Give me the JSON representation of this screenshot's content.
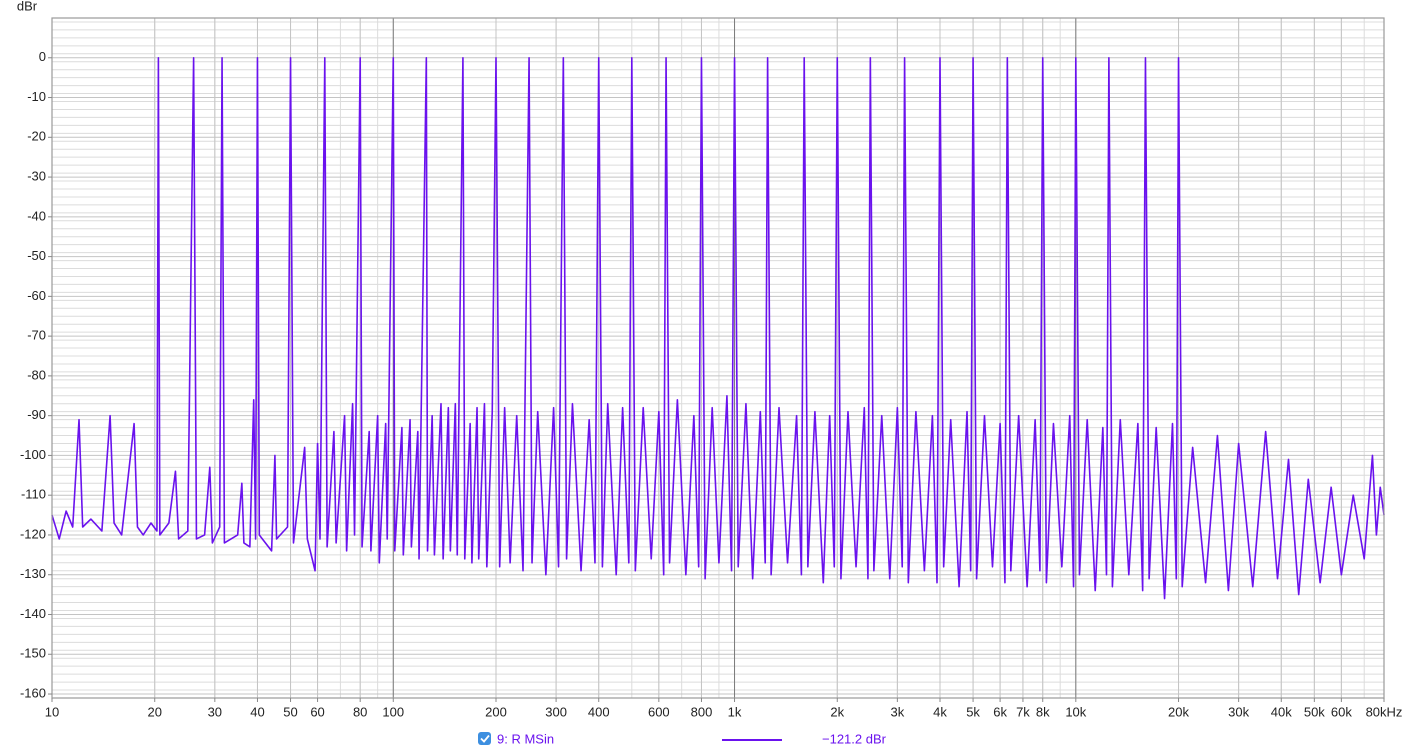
{
  "chart_data": {
    "type": "line",
    "y_label": "dBr",
    "log_x": true,
    "grid": true,
    "xlim": [
      10,
      80000
    ],
    "ylim": [
      -161,
      10
    ],
    "xticks": [
      10,
      20,
      30,
      40,
      50,
      60,
      80,
      100,
      200,
      300,
      400,
      600,
      800,
      {
        "value": 1000,
        "label": "1k"
      },
      {
        "value": 2000,
        "label": "2k"
      },
      {
        "value": 3000,
        "label": "3k"
      },
      {
        "value": 4000,
        "label": "4k"
      },
      {
        "value": 5000,
        "label": "5k"
      },
      {
        "value": 6000,
        "label": "6k"
      },
      {
        "value": 7000,
        "label": "7k"
      },
      {
        "value": 8000,
        "label": "8k"
      },
      {
        "value": 10000,
        "label": "10k"
      },
      {
        "value": 20000,
        "label": "20k"
      },
      {
        "value": 30000,
        "label": "30k"
      },
      {
        "value": 40000,
        "label": "40k"
      },
      {
        "value": 50000,
        "label": "50k"
      },
      {
        "value": 60000,
        "label": "60k"
      },
      {
        "value": 80000,
        "label": "80kHz"
      }
    ],
    "yticks": [
      0,
      -10,
      -20,
      -30,
      -40,
      -50,
      -60,
      -70,
      -80,
      -90,
      -100,
      -110,
      -120,
      -130,
      -140,
      -150,
      -160
    ],
    "legend_readout": "−121.2 dBr",
    "x": [
      10,
      10.5,
      11,
      11.5,
      12,
      12.3,
      13,
      14,
      14.8,
      15.2,
      16,
      17.4,
      17.8,
      18.5,
      19.5,
      20.3,
      20.5,
      20.7,
      22,
      23,
      23.5,
      25,
      26,
      26.5,
      28,
      29,
      29.5,
      31,
      31.5,
      32,
      35,
      36,
      36.5,
      38,
      39,
      39.5,
      40,
      40.5,
      44,
      45,
      45.5,
      49,
      50,
      51,
      55,
      56,
      59,
      60,
      61,
      63,
      64,
      67,
      68,
      72,
      73,
      76,
      77,
      80,
      81,
      85,
      86,
      90,
      91,
      95,
      96,
      100,
      101,
      106,
      107,
      112,
      113,
      118,
      119,
      125,
      126,
      130,
      132,
      138,
      140,
      145,
      147,
      152,
      154,
      160,
      162,
      168,
      170,
      176,
      178,
      185,
      188,
      195,
      200,
      205,
      212,
      220,
      230,
      240,
      250,
      255,
      265,
      280,
      295,
      305,
      315,
      322,
      335,
      355,
      375,
      390,
      400,
      410,
      425,
      450,
      470,
      490,
      500,
      512,
      540,
      570,
      600,
      620,
      630,
      645,
      680,
      720,
      760,
      785,
      800,
      820,
      860,
      900,
      950,
      980,
      1000,
      1025,
      1080,
      1130,
      1190,
      1230,
      1250,
      1280,
      1350,
      1430,
      1520,
      1570,
      1600,
      1640,
      1720,
      1820,
      1900,
      1960,
      2000,
      2050,
      2150,
      2270,
      2400,
      2460,
      2500,
      2560,
      2700,
      2850,
      3000,
      3100,
      3150,
      3230,
      3400,
      3600,
      3800,
      3920,
      4000,
      4100,
      4300,
      4550,
      4800,
      4920,
      5000,
      5120,
      5400,
      5700,
      6000,
      6200,
      6300,
      6450,
      6800,
      7200,
      7600,
      7850,
      8000,
      8200,
      8600,
      9100,
      9600,
      9850,
      10000,
      10250,
      10800,
      11400,
      12000,
      12300,
      12500,
      12800,
      13500,
      14300,
      15200,
      15700,
      16000,
      16400,
      17200,
      18200,
      19200,
      19700,
      20000,
      20500,
      22000,
      24000,
      26000,
      28000,
      30000,
      33000,
      36000,
      39000,
      42000,
      45000,
      48000,
      52000,
      56000,
      60000,
      65000,
      70000,
      74000,
      76000,
      78000,
      80000
    ],
    "series": [
      {
        "name": "9: R MSin",
        "color": "#6a12ee",
        "values": [
          -115,
          -121,
          -114,
          -118,
          -91,
          -118,
          -116,
          -119,
          -90,
          -117,
          -120,
          -92,
          -118,
          -120,
          -117,
          -119,
          0,
          -120,
          -117,
          -104,
          -121,
          -119,
          0,
          -121,
          -120,
          -103,
          -122,
          -118,
          0,
          -122,
          -120,
          -107,
          -122,
          -123,
          -86,
          -121,
          0,
          -120,
          -124,
          -100,
          -121,
          -118,
          0,
          -122,
          -98,
          -121,
          -129,
          -97,
          -121,
          0,
          -123,
          -94,
          -122,
          -90,
          -124,
          -87,
          -120,
          0,
          -123,
          -94,
          -124,
          -90,
          -127,
          -92,
          -121,
          0,
          -124,
          -93,
          -125,
          -91,
          -123,
          -94,
          -126,
          0,
          -124,
          -90,
          -125,
          -87,
          -126,
          -88,
          -124,
          -87,
          -125,
          0,
          -126,
          -92,
          -127,
          -88,
          -126,
          -87,
          -128,
          -89,
          0,
          -128,
          -88,
          -127,
          -90,
          -129,
          0,
          -127,
          -89,
          -130,
          -88,
          -128,
          0,
          -126,
          -87,
          -129,
          -91,
          -127,
          0,
          -128,
          -87,
          -130,
          -88,
          -127,
          0,
          -129,
          -88,
          -126,
          -89,
          -130,
          0,
          -127,
          -86,
          -130,
          -90,
          -128,
          0,
          -131,
          -88,
          -127,
          -85,
          -129,
          0,
          -128,
          -87,
          -131,
          -89,
          -127,
          0,
          -130,
          -88,
          -127,
          -90,
          -130,
          0,
          -128,
          -89,
          -132,
          -90,
          -128,
          0,
          -131,
          -89,
          -128,
          -88,
          -131,
          0,
          -129,
          -90,
          -131,
          -88,
          -128,
          0,
          -132,
          -89,
          -129,
          -90,
          -132,
          0,
          -128,
          -91,
          -133,
          -89,
          -129,
          0,
          -131,
          -90,
          -128,
          -92,
          -132,
          0,
          -129,
          -90,
          -133,
          -91,
          -129,
          0,
          -132,
          -92,
          -128,
          -90,
          -133,
          0,
          -130,
          -91,
          -134,
          -93,
          -130,
          0,
          -133,
          -91,
          -130,
          -92,
          -134,
          0,
          -131,
          -93,
          -136,
          -92,
          -131,
          0,
          -133,
          -98,
          -132,
          -95,
          -134,
          -97,
          -133,
          -94,
          -131,
          -101,
          -135,
          -106,
          -132,
          -108,
          -130,
          -110,
          -126,
          -100,
          -120,
          -108,
          -115
        ]
      }
    ]
  }
}
